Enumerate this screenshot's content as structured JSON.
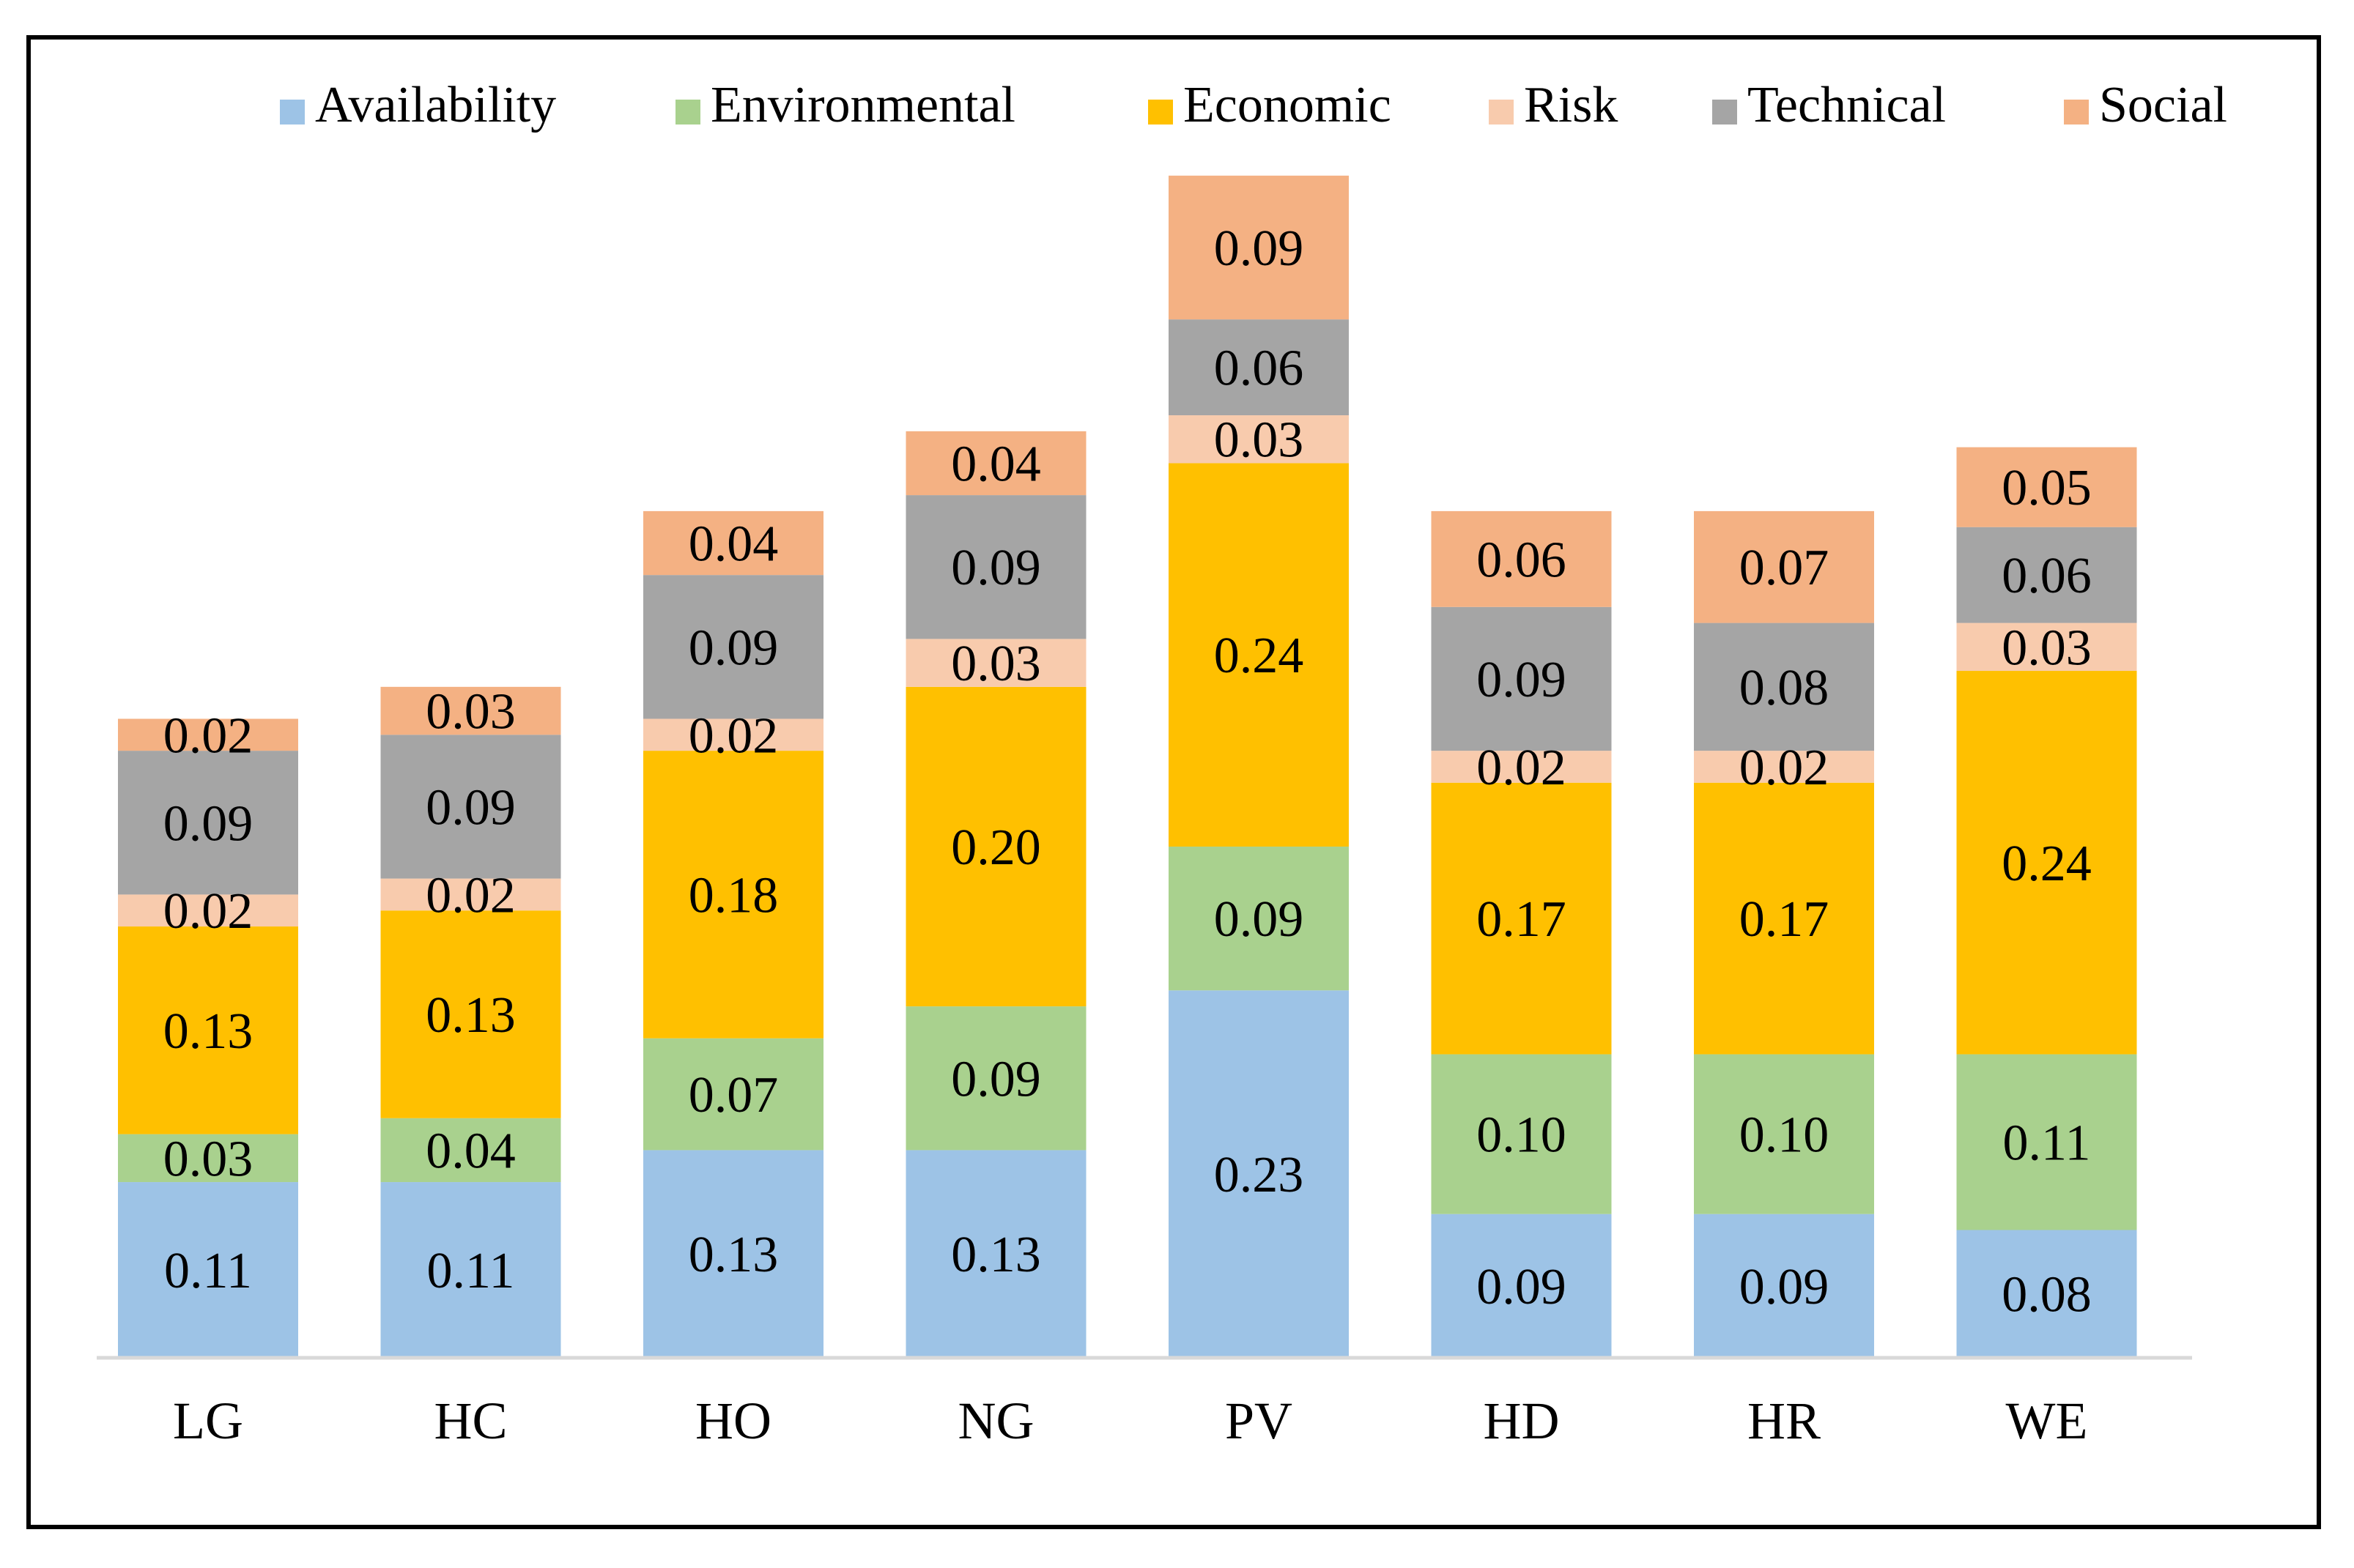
{
  "chart_data": {
    "type": "bar",
    "stacked": true,
    "categories": [
      "LG",
      "HC",
      "HO",
      "NG",
      "PV",
      "HD",
      "HR",
      "WE"
    ],
    "series": [
      {
        "name": "Availability",
        "color": "#9DC3E6",
        "values": [
          0.11,
          0.11,
          0.13,
          0.13,
          0.23,
          0.09,
          0.09,
          0.08
        ]
      },
      {
        "name": "Environmental",
        "color": "#A9D18E",
        "values": [
          0.03,
          0.04,
          0.07,
          0.09,
          0.09,
          0.1,
          0.1,
          0.11
        ]
      },
      {
        "name": "Economic",
        "color": "#FFC000",
        "values": [
          0.13,
          0.13,
          0.18,
          0.2,
          0.24,
          0.17,
          0.17,
          0.24
        ]
      },
      {
        "name": "Risk",
        "color": "#F8CBAD",
        "values": [
          0.02,
          0.02,
          0.02,
          0.03,
          0.03,
          0.02,
          0.02,
          0.03
        ]
      },
      {
        "name": "Technical",
        "color": "#A5A5A5",
        "values": [
          0.09,
          0.09,
          0.09,
          0.09,
          0.06,
          0.09,
          0.08,
          0.06
        ]
      },
      {
        "name": "Social",
        "color": "#F4B183",
        "values": [
          0.02,
          0.03,
          0.04,
          0.04,
          0.09,
          0.06,
          0.07,
          0.05
        ]
      }
    ],
    "value_labels": [
      [
        "0.11",
        "0.11",
        "0.13",
        "0.13",
        "0.23",
        "0.09",
        "0.09",
        "0.08"
      ],
      [
        "0.03",
        "0.04",
        "0.07",
        "0.09",
        "0.09",
        "0.10",
        "0.10",
        "0.11"
      ],
      [
        "0.13",
        "0.13",
        "0.18",
        "0.20",
        "0.24",
        "0.17",
        "0.17",
        "0.24"
      ],
      [
        "0.02",
        "0.02",
        "0.02",
        "0.03",
        "0.03",
        "0.02",
        "0.02",
        "0.03"
      ],
      [
        "0.09",
        "0.09",
        "0.09",
        "0.09",
        "0.06",
        "0.09",
        "0.08",
        "0.06"
      ],
      [
        "0.02",
        "0.03",
        "0.04",
        "0.04",
        "0.09",
        "0.06",
        "0.07",
        "0.05"
      ]
    ],
    "title": "",
    "xlabel": "",
    "ylabel": "",
    "ylim": [
      0,
      0.75
    ],
    "grid": false,
    "legend": "top"
  }
}
